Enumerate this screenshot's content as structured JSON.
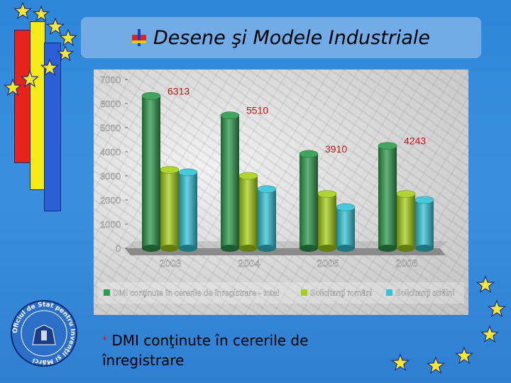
{
  "header": {
    "title": "Desene şi Modele Industriale"
  },
  "footnote": {
    "marker": "*",
    "text": "DMI conţinute în cererile de înregistrare"
  },
  "seal": {
    "text": "Oficiul de Stat pentru Invenţii şi Mărci"
  },
  "colors": {
    "background": "#3089da",
    "series_total": "#2e9a4e",
    "series_romanian": "#a6cf1a",
    "series_foreign": "#34c3d6",
    "value_labels": "#c0161c",
    "axis_labels": "#ffffff",
    "flag_red": "#e8231d",
    "flag_yellow": "#f4ea17",
    "flag_blue": "#2a5fd6",
    "stars": "#f3e63a"
  },
  "icons": [
    "flag-icon",
    "star-icon",
    "seal-logo"
  ],
  "chart_data": {
    "type": "bar",
    "categories": [
      "2003",
      "2004",
      "2005",
      "2006"
    ],
    "series": [
      {
        "name": "DMI conţinute în cererile de înregistrare - total",
        "values": [
          6313,
          5510,
          3910,
          4243
        ]
      },
      {
        "name": "Solicitanţi români",
        "values": [
          3250,
          3000,
          2250,
          2250
        ]
      },
      {
        "name": "Solicitanţi străini",
        "values": [
          3150,
          2450,
          1700,
          2000
        ]
      }
    ],
    "value_labels": [
      "6313",
      "5510",
      "3910",
      "4243"
    ],
    "y_ticks": [
      "0",
      "1000",
      "2000",
      "3000",
      "4000",
      "5000",
      "6000",
      "7000"
    ],
    "ylim": [
      0,
      7000
    ],
    "legend_position": "bottom",
    "style": "3d-cylinder",
    "title": "",
    "xlabel": "",
    "ylabel": ""
  }
}
